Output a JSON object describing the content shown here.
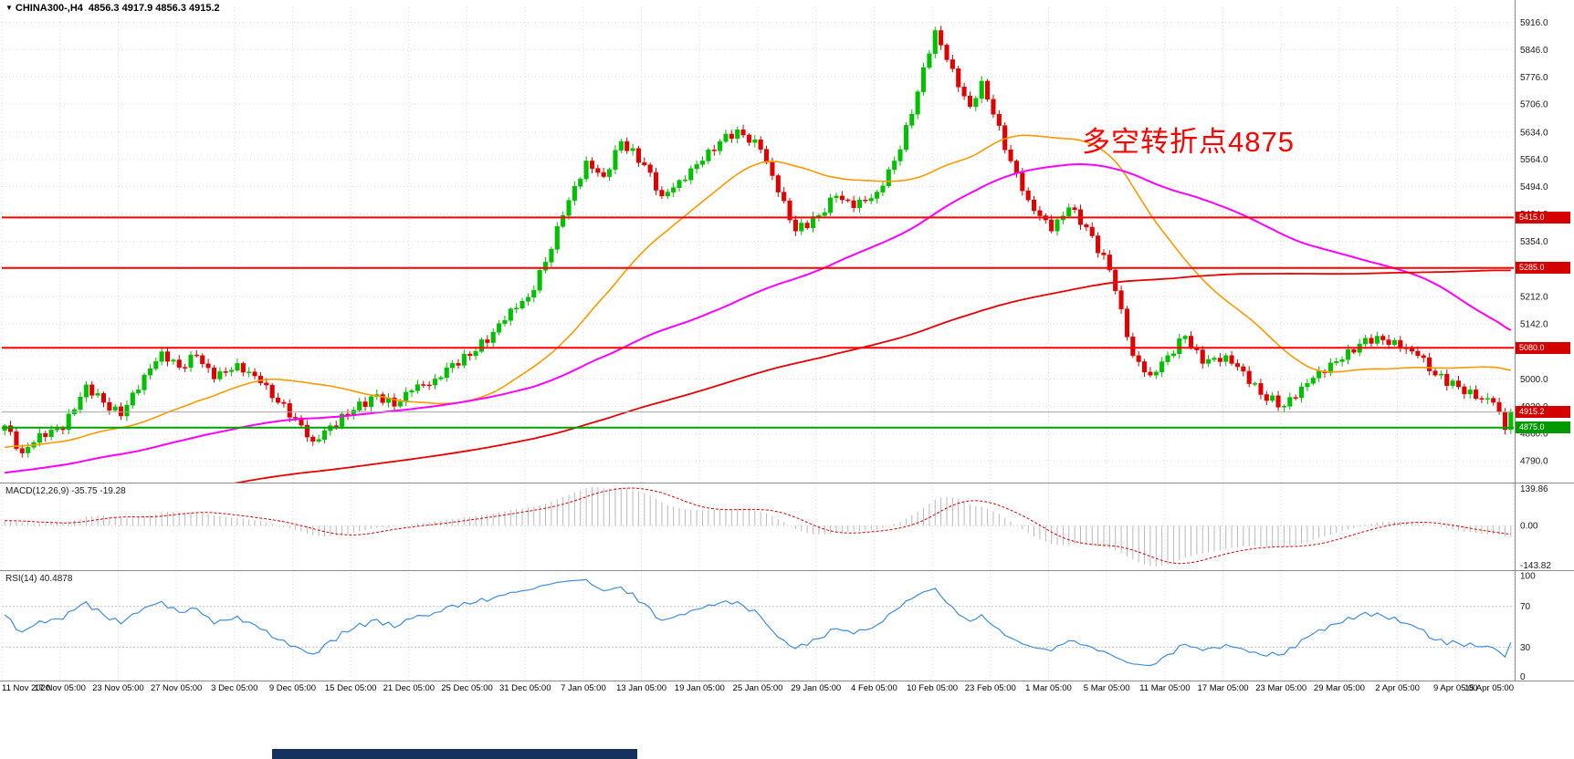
{
  "header": {
    "dropdown_icon": "▼",
    "symbol_period": "CHINA300-,H4",
    "ohlc": "4856.3 4917.9 4856.3 4915.2"
  },
  "annotation": {
    "text": "多空转折点4875",
    "color": "#FF0000"
  },
  "panes": {
    "macd": {
      "title": "MACD(12,26,9) -35.75 -19.28",
      "axis_labels": [
        "139.86",
        "0.00",
        "-143.82"
      ]
    },
    "rsi": {
      "title": "RSI(14) 40.4878",
      "axis_labels": [
        "100",
        "70",
        "30",
        "0"
      ],
      "levels": [
        70,
        30
      ]
    }
  },
  "axes": {
    "price_labels": [
      "5916.0",
      "5846.0",
      "5776.0",
      "5706.0",
      "5634.0",
      "5564.0",
      "5494.0",
      "5424.0",
      "5354.0",
      "5284.0",
      "5212.0",
      "5142.0",
      "5072.0",
      "5000.0",
      "4930.0",
      "4860.0",
      "4790.0"
    ],
    "price_values": [
      5916,
      5846,
      5776,
      5706,
      5634,
      5564,
      5494,
      5424,
      5354,
      5284,
      5212,
      5142,
      5072,
      5000,
      4930,
      4860,
      4790
    ],
    "time_labels": [
      "11 Nov 2020",
      "17 Nov 05:00",
      "23 Nov 05:00",
      "27 Nov 05:00",
      "3 Dec 05:00",
      "9 Dec 05:00",
      "15 Dec 05:00",
      "21 Dec 05:00",
      "25 Dec 05:00",
      "31 Dec 05:00",
      "7 Jan 05:00",
      "13 Jan 05:00",
      "19 Jan 05:00",
      "25 Jan 05:00",
      "29 Jan 05:00",
      "4 Feb 05:00",
      "10 Feb 05:00",
      "23 Feb 05:00",
      "1 Mar 05:00",
      "5 Mar 05:00",
      "11 Mar 05:00",
      "17 Mar 05:00",
      "23 Mar 05:00",
      "29 Mar 05:00",
      "2 Apr 05:00",
      "9 Apr 05:00",
      "15 Apr 05:00"
    ]
  },
  "price_tags": [
    {
      "label": "5415.0",
      "price": 5415.0,
      "color": "#D40000"
    },
    {
      "label": "5285.0",
      "price": 5285.0,
      "color": "#D40000"
    },
    {
      "label": "5080.0",
      "price": 5080.0,
      "color": "#D40000"
    },
    {
      "label": "4915.2",
      "price": 4915.2,
      "color": "#D40000"
    },
    {
      "label": "4875.0",
      "price": 4875.0,
      "color": "#009900"
    }
  ],
  "chart_data": {
    "type": "candlestick",
    "symbol": "CHINA300-",
    "timeframe": "H4",
    "ylim": [
      4755,
      5950
    ],
    "bar_count": 260,
    "bars_per_tick": 10,
    "zigzag_amp": 12,
    "price_path": [
      [
        0,
        4880
      ],
      [
        3,
        4810
      ],
      [
        6,
        4860
      ],
      [
        10,
        4870
      ],
      [
        14,
        4985
      ],
      [
        17,
        4940
      ],
      [
        20,
        4905
      ],
      [
        24,
        5010
      ],
      [
        27,
        5070
      ],
      [
        30,
        5030
      ],
      [
        33,
        5060
      ],
      [
        36,
        5000
      ],
      [
        40,
        5040
      ],
      [
        44,
        4990
      ],
      [
        47,
        4940
      ],
      [
        50,
        4900
      ],
      [
        53,
        4840
      ],
      [
        56,
        4880
      ],
      [
        60,
        4920
      ],
      [
        64,
        4960
      ],
      [
        67,
        4930
      ],
      [
        70,
        4970
      ],
      [
        74,
        5000
      ],
      [
        77,
        5040
      ],
      [
        80,
        5060
      ],
      [
        84,
        5120
      ],
      [
        87,
        5180
      ],
      [
        90,
        5210
      ],
      [
        93,
        5300
      ],
      [
        96,
        5420
      ],
      [
        100,
        5560
      ],
      [
        103,
        5520
      ],
      [
        106,
        5610
      ],
      [
        110,
        5550
      ],
      [
        113,
        5470
      ],
      [
        116,
        5510
      ],
      [
        120,
        5560
      ],
      [
        123,
        5610
      ],
      [
        126,
        5640
      ],
      [
        130,
        5590
      ],
      [
        133,
        5480
      ],
      [
        136,
        5380
      ],
      [
        140,
        5420
      ],
      [
        143,
        5470
      ],
      [
        146,
        5440
      ],
      [
        150,
        5480
      ],
      [
        153,
        5560
      ],
      [
        156,
        5680
      ],
      [
        158,
        5800
      ],
      [
        160,
        5895
      ],
      [
        162,
        5820
      ],
      [
        164,
        5750
      ],
      [
        166,
        5700
      ],
      [
        168,
        5765
      ],
      [
        170,
        5680
      ],
      [
        173,
        5560
      ],
      [
        176,
        5460
      ],
      [
        180,
        5380
      ],
      [
        183,
        5440
      ],
      [
        186,
        5390
      ],
      [
        190,
        5280
      ],
      [
        192,
        5180
      ],
      [
        194,
        5060
      ],
      [
        197,
        5010
      ],
      [
        200,
        5060
      ],
      [
        203,
        5110
      ],
      [
        206,
        5040
      ],
      [
        210,
        5060
      ],
      [
        213,
        5020
      ],
      [
        216,
        4960
      ],
      [
        220,
        4930
      ],
      [
        223,
        4980
      ],
      [
        226,
        5020
      ],
      [
        230,
        5050
      ],
      [
        233,
        5090
      ],
      [
        236,
        5110
      ],
      [
        240,
        5080
      ],
      [
        243,
        5060
      ],
      [
        246,
        5010
      ],
      [
        250,
        4980
      ],
      [
        253,
        4950
      ],
      [
        256,
        4940
      ],
      [
        258,
        4870
      ],
      [
        259,
        4915.2
      ]
    ],
    "prehistory": {
      "bars": 220,
      "start": 4350,
      "end": 4860
    },
    "moving_averages": [
      {
        "name": "fast",
        "type": "sma",
        "period": 34,
        "color": "#FF9900",
        "width": 1.6
      },
      {
        "name": "medium",
        "type": "sma",
        "period": 90,
        "color": "#FF00FF",
        "width": 2
      },
      {
        "name": "slow",
        "type": "sma",
        "period": 200,
        "color": "#E80000",
        "width": 1.8
      }
    ],
    "hlines": [
      {
        "price": 5415.0,
        "color": "#FF0000",
        "width": 2,
        "kind": "resistance"
      },
      {
        "price": 5285.0,
        "color": "#FF0000",
        "width": 2,
        "kind": "resistance"
      },
      {
        "price": 5080.0,
        "color": "#FF0000",
        "width": 2,
        "kind": "resistance"
      },
      {
        "price": 4875.0,
        "color": "#00A000",
        "width": 2,
        "kind": "support"
      }
    ],
    "current_price": 4915.2,
    "macd": {
      "fast": 12,
      "slow": 26,
      "signal": 9,
      "value": -35.75,
      "signal_value": -19.28,
      "range": [
        139.86,
        -143.82
      ]
    },
    "rsi": {
      "period": 14,
      "value": 40.4878
    },
    "candle_up_color": "#00C000",
    "candle_down_color": "#E00000"
  },
  "bottom_bar": {
    "color": "#15325F"
  }
}
